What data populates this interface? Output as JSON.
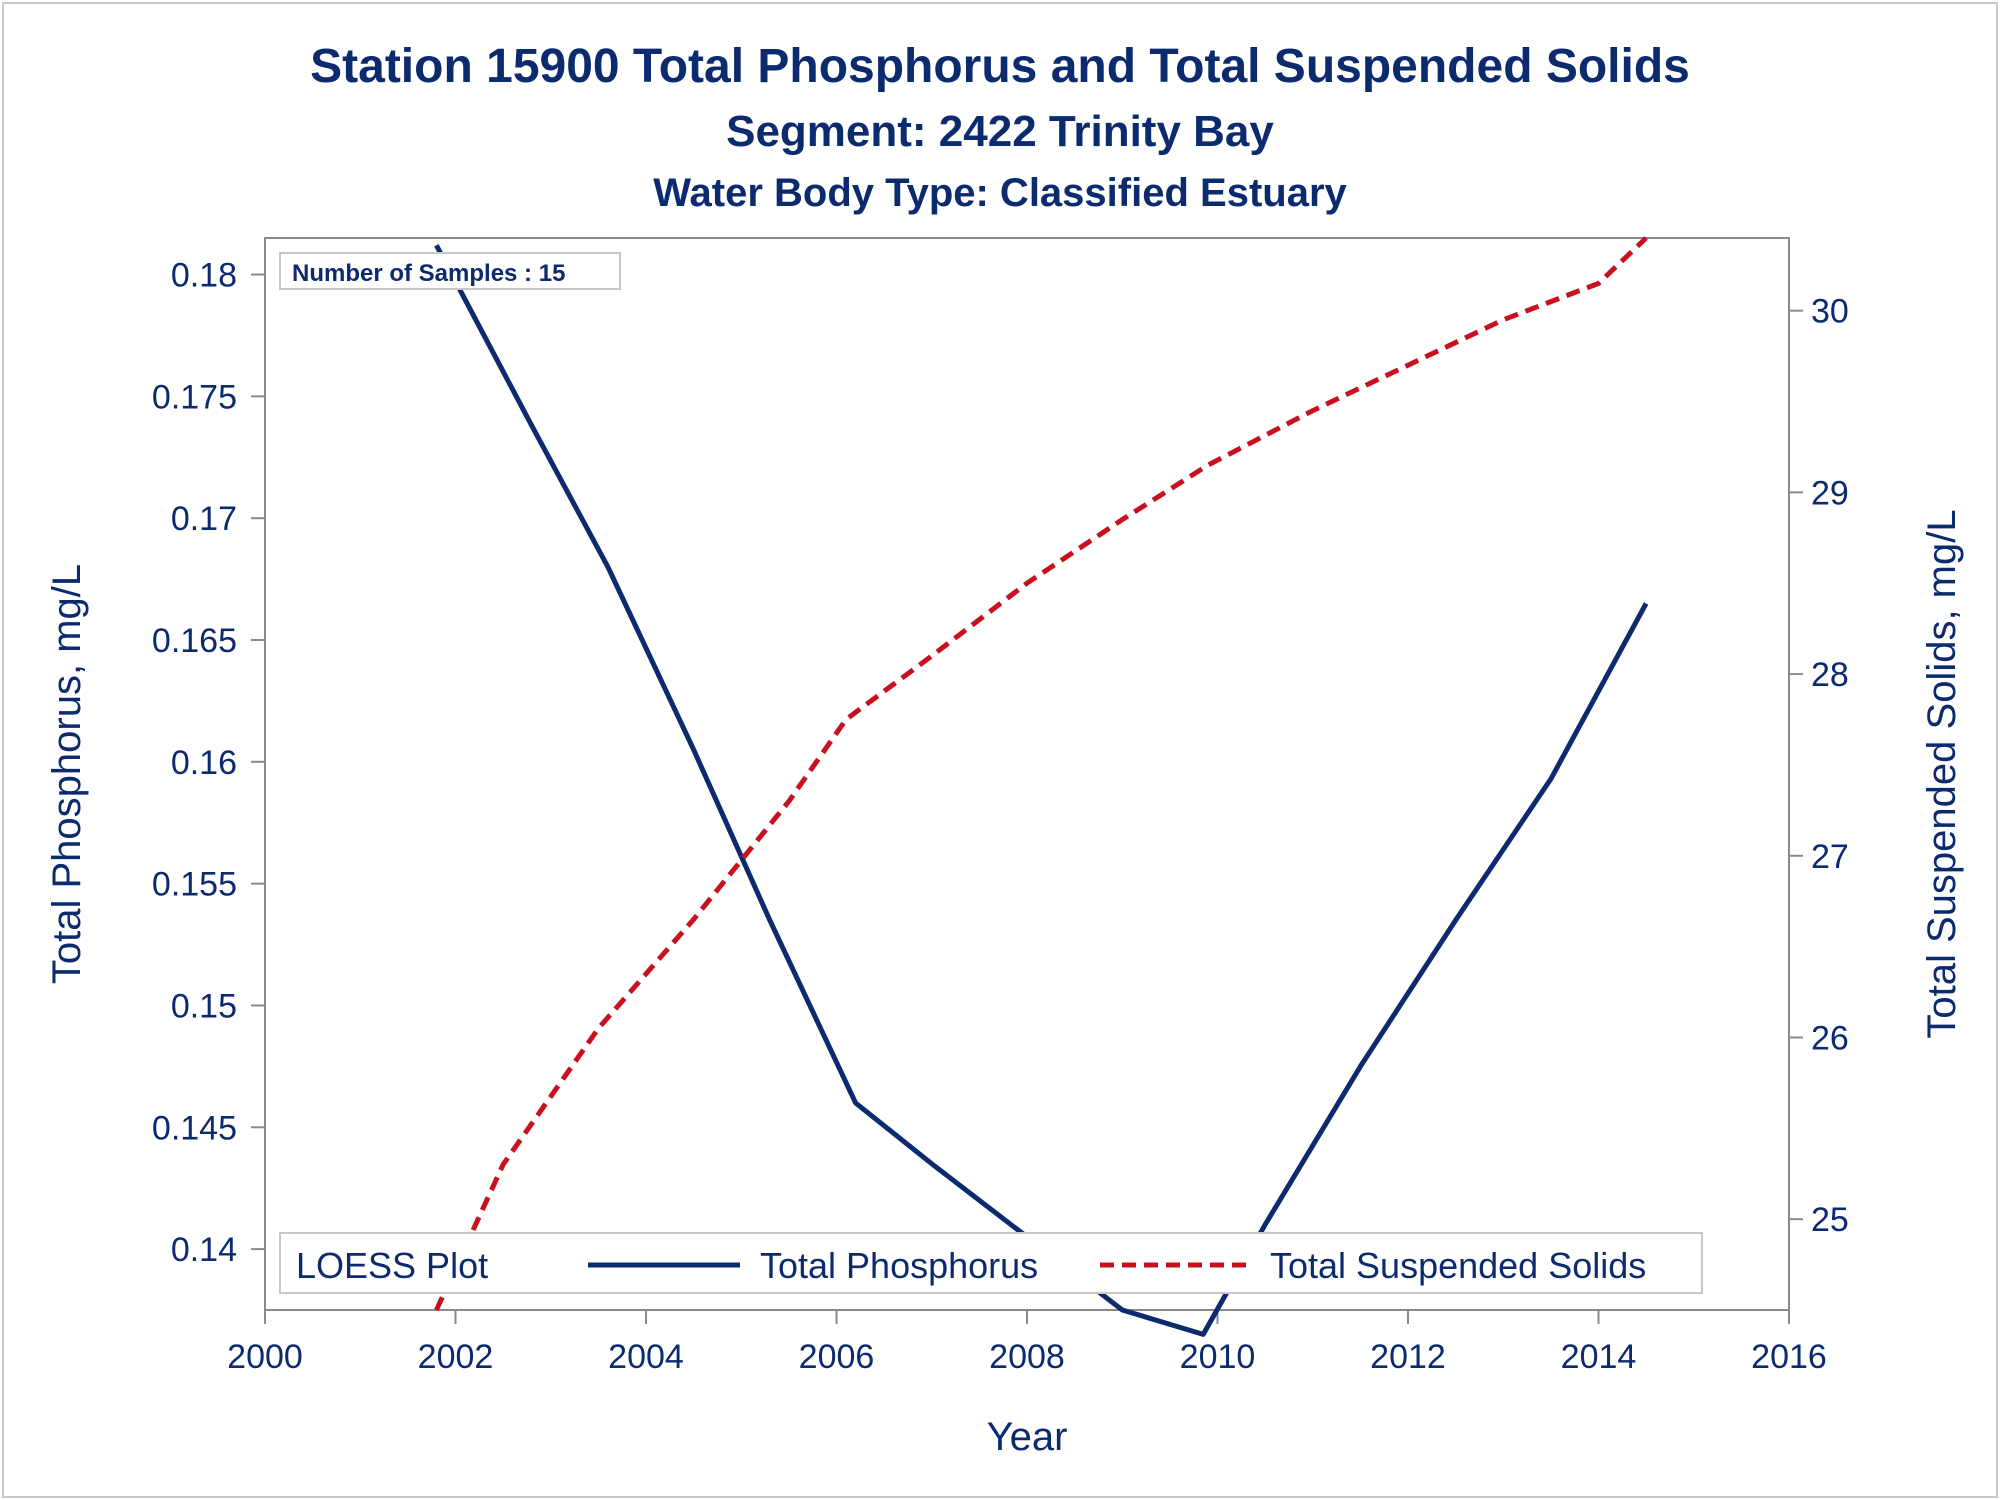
{
  "chart_data": {
    "type": "line",
    "title": "Station 15900  Total Phosphorus and Total Suspended Solids",
    "subtitle": "Segment: 2422  Trinity Bay",
    "subtitle2": "Water Body Type: Classified Estuary",
    "xlabel": "Year",
    "ylabel": "Total Phosphorus, mg/L",
    "y2label": "Total Suspended Solids, mg/L",
    "xlim": [
      2000,
      2016
    ],
    "ylim": [
      0.1375,
      0.1815
    ],
    "y2lim": [
      24.5,
      30.4
    ],
    "xticks": [
      2000,
      2002,
      2004,
      2006,
      2008,
      2010,
      2012,
      2014,
      2016
    ],
    "xtick_labels": [
      "2000",
      "2002",
      "2004",
      "2006",
      "2008",
      "2010",
      "2012",
      "2014",
      "2016"
    ],
    "yticks": [
      0.14,
      0.145,
      0.15,
      0.155,
      0.16,
      0.165,
      0.17,
      0.175,
      0.18
    ],
    "ytick_labels": [
      "0.14",
      "0.145",
      "0.15",
      "0.155",
      "0.16",
      "0.165",
      "0.17",
      "0.175",
      "0.18"
    ],
    "y2ticks": [
      25,
      26,
      27,
      28,
      29,
      30
    ],
    "y2tick_labels": [
      "25",
      "26",
      "27",
      "28",
      "29",
      "30"
    ],
    "grid": false,
    "annotation": "Number of Samples : 15",
    "legend": {
      "position": "bottom-inside",
      "title": "LOESS Plot"
    },
    "series": [
      {
        "name": "Total Phosphorus",
        "axis": "left",
        "color": "#0c2a6e",
        "style": "solid",
        "x": [
          2001.8,
          2002.8,
          2003.6,
          2004.5,
          2005.3,
          2006.2,
          2007.0,
          2008.0,
          2009.0,
          2009.85,
          2010.5,
          2011.5,
          2012.5,
          2013.5,
          2014.5
        ],
        "y": [
          0.1812,
          0.1738,
          0.168,
          0.1605,
          0.1535,
          0.146,
          0.1435,
          0.1405,
          0.1375,
          0.1365,
          0.141,
          0.1475,
          0.1535,
          0.1593,
          0.1665
        ]
      },
      {
        "name": "Total Suspended Solids",
        "axis": "right",
        "color": "#c8101e",
        "style": "dashed",
        "x": [
          2001.8,
          2002.5,
          2003.5,
          2004.5,
          2005.5,
          2006.1,
          2007.0,
          2008.0,
          2009.0,
          2009.9,
          2011.0,
          2012.0,
          2013.0,
          2014.0,
          2014.5
        ],
        "y": [
          24.5,
          25.3,
          26.05,
          26.65,
          27.3,
          27.75,
          28.1,
          28.5,
          28.85,
          29.15,
          29.45,
          29.7,
          29.95,
          30.15,
          30.4
        ]
      }
    ]
  }
}
